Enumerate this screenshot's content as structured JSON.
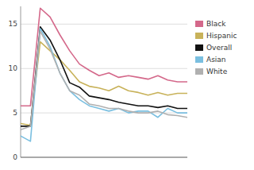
{
  "chart_data": {
    "type": "line",
    "categories": [
      null,
      null,
      null,
      null,
      null,
      null,
      null,
      null,
      null,
      null,
      null,
      null,
      null,
      null,
      null,
      null,
      null,
      null
    ],
    "series": [
      {
        "name": "Black",
        "color": "#d4688a",
        "values": [
          5.8,
          5.8,
          16.8,
          15.8,
          13.8,
          12.0,
          10.5,
          9.8,
          9.2,
          9.5,
          9.0,
          9.2,
          9.0,
          8.8,
          9.2,
          8.7,
          8.5,
          8.5
        ]
      },
      {
        "name": "Hispanic",
        "color": "#c8b25a",
        "values": [
          3.8,
          3.6,
          13.0,
          12.0,
          11.0,
          9.8,
          8.5,
          8.0,
          7.8,
          7.5,
          8.0,
          7.5,
          7.3,
          7.0,
          7.3,
          7.0,
          7.2,
          7.2
        ]
      },
      {
        "name": "Overall",
        "color": "#111111",
        "values": [
          3.5,
          3.5,
          14.7,
          13.2,
          11.0,
          8.4,
          7.9,
          6.9,
          6.7,
          6.5,
          6.2,
          6.0,
          5.8,
          5.8,
          5.6,
          5.8,
          5.5,
          5.5
        ]
      },
      {
        "name": "Asian",
        "color": "#7abfe0",
        "values": [
          2.4,
          1.8,
          14.5,
          12.5,
          9.5,
          7.5,
          6.5,
          5.8,
          5.5,
          5.2,
          5.5,
          5.0,
          5.2,
          5.2,
          4.5,
          5.5,
          5.0,
          5.0
        ]
      },
      {
        "name": "White",
        "color": "#b0b0b0",
        "values": [
          3.1,
          3.5,
          14.2,
          12.2,
          9.5,
          7.5,
          7.0,
          6.0,
          5.8,
          5.5,
          5.5,
          5.2,
          5.0,
          5.0,
          5.2,
          4.8,
          4.7,
          4.5
        ]
      }
    ],
    "ylim": [
      0,
      17
    ],
    "yticks": [
      0,
      5,
      10,
      15
    ],
    "grid": true,
    "legend": "right",
    "tick_labels": "y"
  }
}
